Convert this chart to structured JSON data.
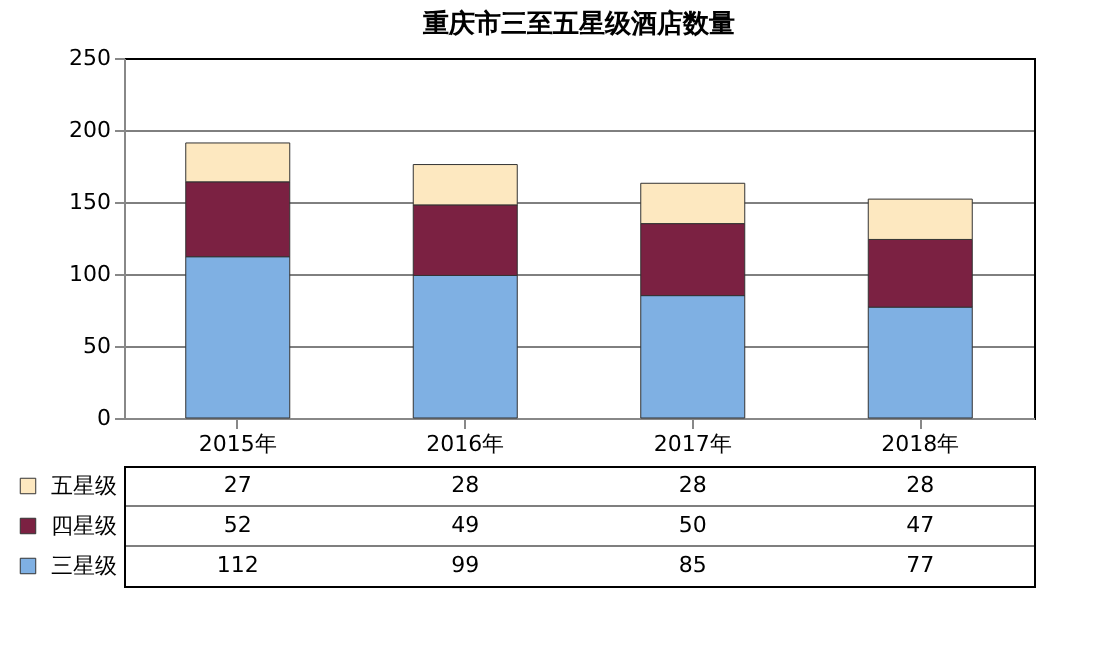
{
  "chart_data": {
    "type": "bar",
    "title": "重庆市三至五星级酒店数量",
    "categories": [
      "2015年",
      "2016年",
      "2017年",
      "2018年"
    ],
    "series": [
      {
        "name": "三星级",
        "color": "#7fb0e3",
        "values": [
          112,
          99,
          85,
          77
        ]
      },
      {
        "name": "四星级",
        "color": "#7b2142",
        "values": [
          52,
          49,
          50,
          47
        ]
      },
      {
        "name": "五星级",
        "color": "#fde8c0",
        "values": [
          27,
          28,
          28,
          28
        ]
      }
    ],
    "stacked": true,
    "ylim": [
      0,
      250
    ],
    "yticks": [
      0,
      50,
      100,
      150,
      200,
      250
    ],
    "grid": "y",
    "legend": "bottom",
    "data_labels": true
  }
}
